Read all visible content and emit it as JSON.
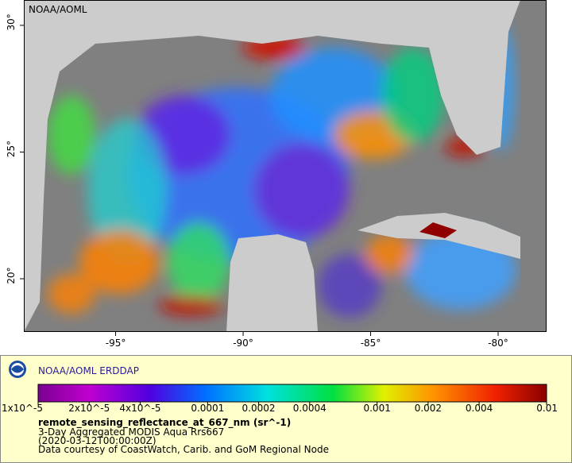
{
  "map": {
    "watermark": "NOAA/AOML",
    "xlim": [
      -98.6,
      -78.1
    ],
    "ylim": [
      17.9,
      31
    ],
    "xticks": [
      {
        "value": -95,
        "label": "-95°"
      },
      {
        "value": -90,
        "label": "-90°"
      },
      {
        "value": -85,
        "label": "-85°"
      },
      {
        "value": -80,
        "label": "-80°"
      }
    ],
    "yticks": [
      {
        "value": 30,
        "label": "30°"
      },
      {
        "value": 25,
        "label": "25°"
      },
      {
        "value": 20,
        "label": "20°"
      }
    ]
  },
  "legend": {
    "brand": "NOAA/AOML ERDDAP",
    "scale": "log",
    "range": [
      1e-05,
      0.01
    ],
    "ticks": [
      {
        "value": 1e-05,
        "label": "1x10^-5"
      },
      {
        "value": 2e-05,
        "label": "2x10^-5"
      },
      {
        "value": 4e-05,
        "label": "4x10^-5"
      },
      0.0001,
      0.0002,
      0.0004,
      0.001,
      0.002,
      0.004,
      0.01
    ],
    "variable": "remote_sensing_reflectance_at_667_nm (sr^-1)",
    "lines": [
      "3-Day Aggregated MODIS Aqua Rrs667",
      "(2020-03-12T00:00:00Z)",
      "Data courtesy of CoastWatch, Carib. and GoM Regional Node"
    ]
  }
}
